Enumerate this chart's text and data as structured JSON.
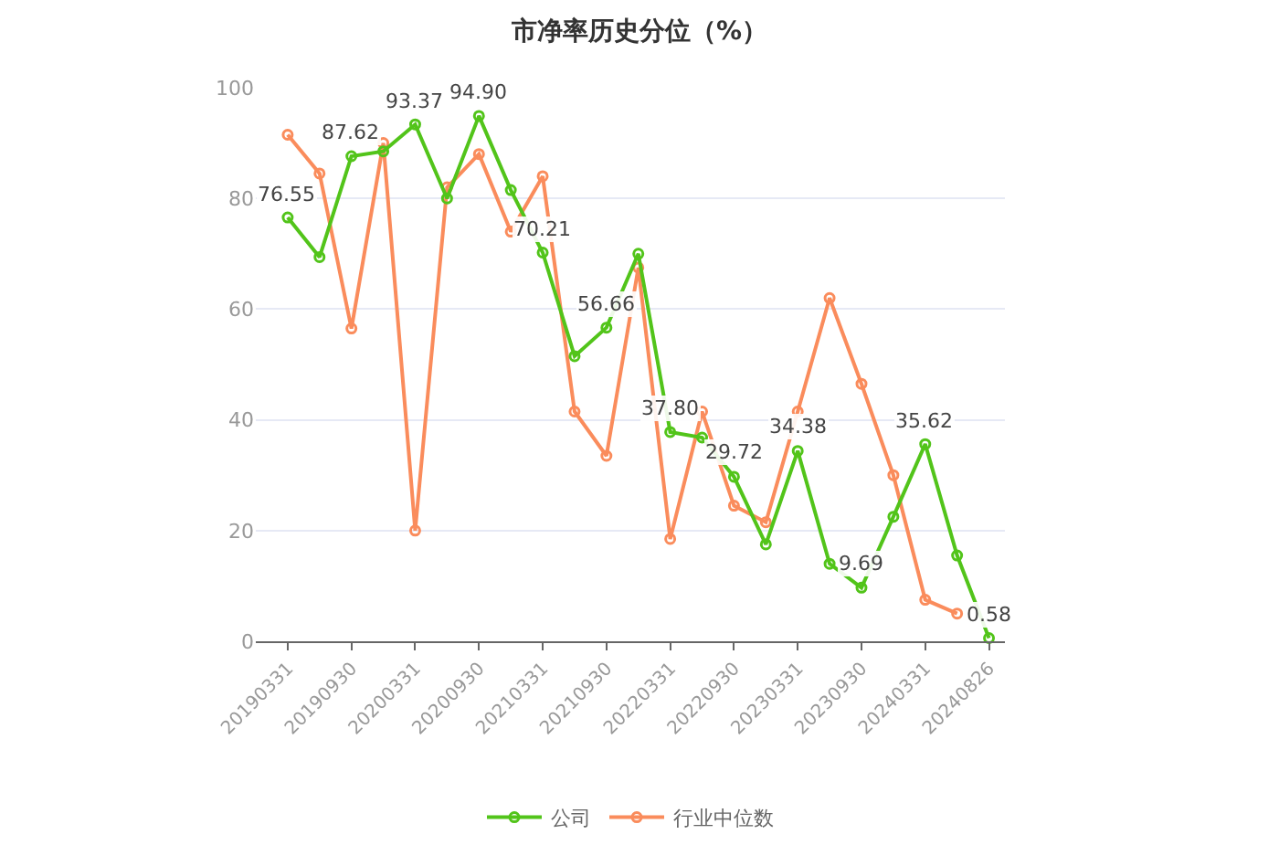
{
  "chart_data": {
    "type": "line",
    "title": "市净率历史分位（%）",
    "categories": [
      "20190331",
      null,
      "20190930",
      null,
      "20200331",
      null,
      "20200930",
      null,
      "20210331",
      null,
      "20210930",
      null,
      "20220331",
      null,
      "20220930",
      null,
      "20230331",
      null,
      "20230930",
      null,
      "20240331",
      null,
      "20240826"
    ],
    "series": [
      {
        "name": "公司",
        "color": "#52c41a",
        "values": [
          76.55,
          69.4,
          87.62,
          88.5,
          93.37,
          80,
          94.9,
          81.5,
          70.21,
          51.5,
          56.66,
          70,
          37.8,
          36.8,
          29.72,
          17.5,
          34.38,
          14,
          9.69,
          22.5,
          35.62,
          15.5,
          0.58
        ],
        "value_labels": [
          "76.55",
          null,
          "87.62",
          null,
          "93.37",
          null,
          "94.90",
          null,
          "70.21",
          null,
          "56.66",
          null,
          "37.80",
          null,
          "29.72",
          null,
          "34.38",
          null,
          "9.69",
          null,
          "35.62",
          null,
          "0.58"
        ]
      },
      {
        "name": "行业中位数",
        "color": "#fa8c5c",
        "values": [
          91.5,
          84.5,
          56.5,
          90,
          20,
          82,
          88,
          74,
          84,
          41.5,
          33.5,
          67.5,
          18.5,
          41.5,
          24.5,
          21.5,
          41.5,
          62,
          46.5,
          30,
          7.5,
          5,
          null
        ]
      }
    ],
    "ylim": [
      0,
      100
    ],
    "yticks": [
      0,
      20,
      40,
      60,
      80,
      100
    ],
    "grid": "y",
    "legend": "bottom",
    "marker": "circle",
    "line_style": "solid"
  }
}
